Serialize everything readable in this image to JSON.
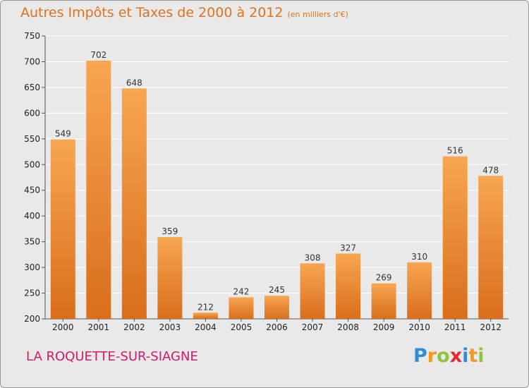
{
  "chart_data": {
    "type": "bar",
    "title": "Autres Impôts et Taxes de 2000 à 2012",
    "subtitle": "(en milliers d'€)",
    "xlabel": "",
    "ylabel": "",
    "categories": [
      "2000",
      "2001",
      "2002",
      "2003",
      "2004",
      "2005",
      "2006",
      "2007",
      "2008",
      "2009",
      "2010",
      "2011",
      "2012"
    ],
    "values": [
      549,
      702,
      648,
      359,
      212,
      242,
      245,
      308,
      327,
      269,
      310,
      516,
      478
    ],
    "ylim": [
      200,
      750
    ],
    "yticks": [
      200,
      250,
      300,
      350,
      400,
      450,
      500,
      550,
      600,
      650,
      700,
      750
    ],
    "grid": true,
    "bar_color_top": "#f7a652",
    "bar_color_bottom": "#d96e1c"
  },
  "commune": "LA ROQUETTE-SUR-SIAGNE",
  "logo": {
    "letters": [
      "P",
      "r",
      "o",
      "x",
      "i",
      "t",
      "i"
    ],
    "colors": [
      "#2d8ed6",
      "#f39a1e",
      "#8fc23f",
      "#e8262d",
      "#2d8ed6",
      "#f39a1e",
      "#8fc23f"
    ]
  }
}
